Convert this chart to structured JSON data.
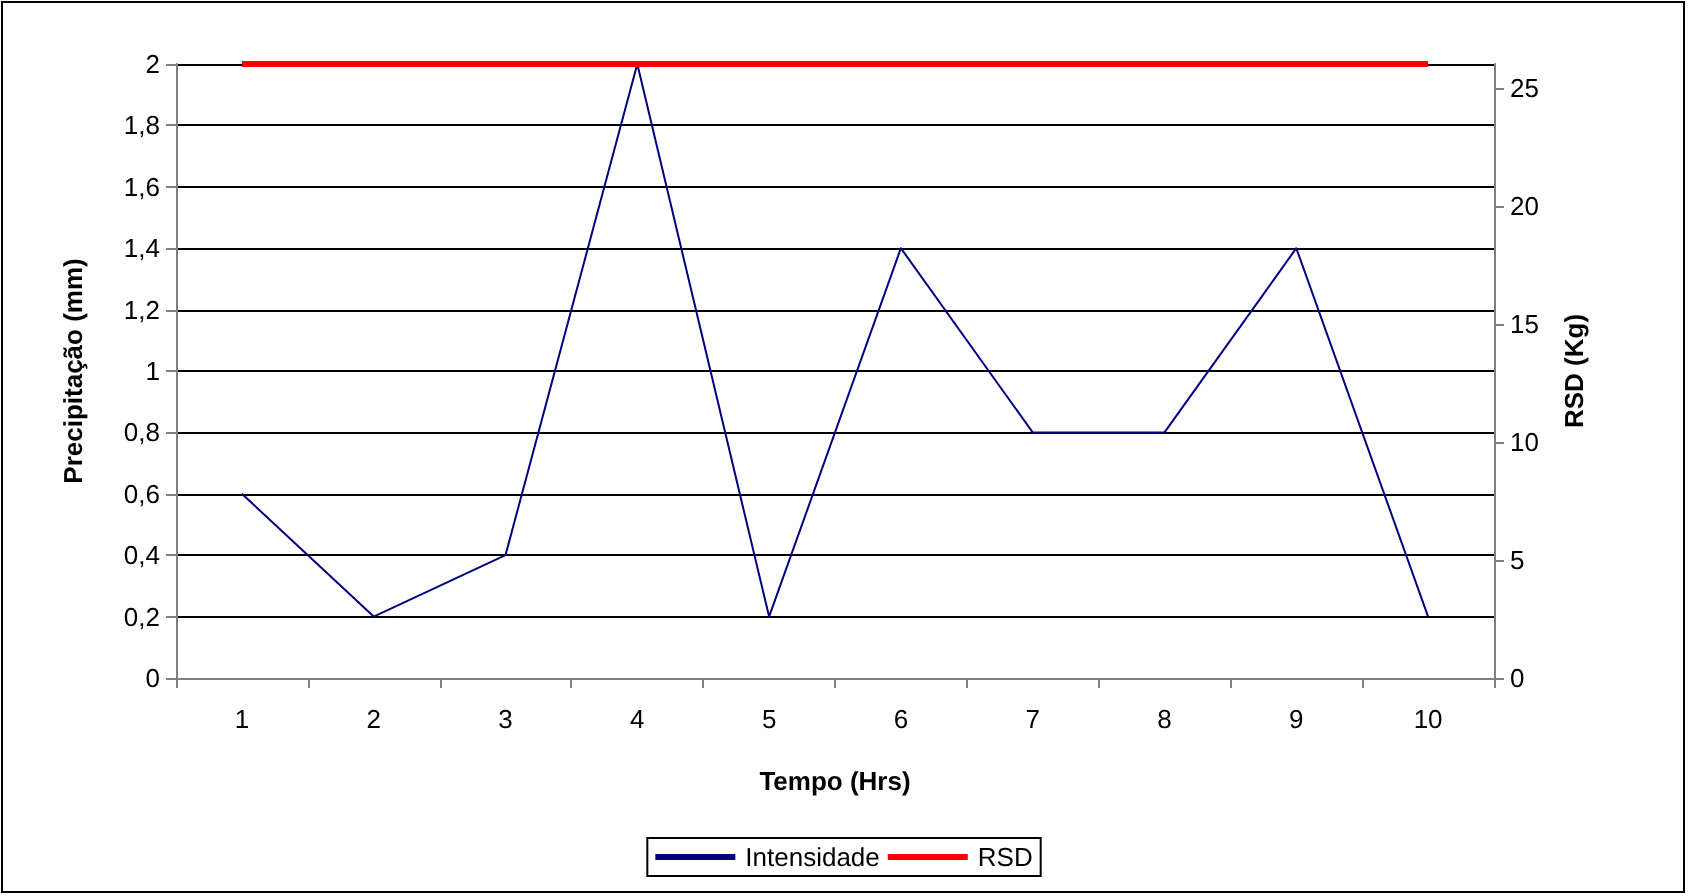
{
  "chart_data": {
    "type": "line",
    "xlabel": "Tempo (Hrs)",
    "ylabel": "Precipitação (mm)",
    "y2label": "RSD (Kg)",
    "categories": [
      "1",
      "2",
      "3",
      "4",
      "5",
      "6",
      "7",
      "8",
      "9",
      "10"
    ],
    "series": [
      {
        "name": "Intensidade",
        "color": "#000080",
        "values": [
          0.6,
          0.2,
          0.4,
          2,
          0.2,
          1.4,
          0.8,
          0.8,
          1.4,
          0.2
        ]
      },
      {
        "name": "RSD",
        "color": "#ff0000",
        "axis": "y2",
        "values": [
          26,
          26,
          26,
          26,
          26,
          26,
          26,
          26,
          26,
          26
        ]
      }
    ],
    "ylim": [
      0,
      2
    ],
    "yticks": [
      0,
      {
        "value": 0.2,
        "label": "0,2"
      },
      {
        "value": 0.4,
        "label": "0,4"
      },
      {
        "value": 0.6,
        "label": "0,6"
      },
      {
        "value": 0.8,
        "label": "0,8"
      },
      1,
      {
        "value": 1.2,
        "label": "1,2"
      },
      {
        "value": 1.4,
        "label": "1,4"
      },
      {
        "value": 1.6,
        "label": "1,6"
      },
      {
        "value": 1.8,
        "label": "1,8"
      },
      2
    ],
    "y2lim": [
      0,
      26
    ],
    "y2ticks": [
      0,
      5,
      10,
      15,
      20,
      25
    ],
    "grid": "y",
    "legend": "bottom",
    "marker": "none",
    "line_style": "solid"
  }
}
